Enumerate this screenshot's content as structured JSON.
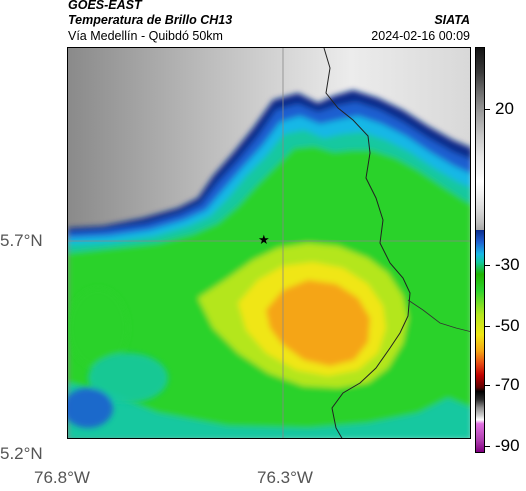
{
  "header": {
    "title_line1": "GOES-EAST",
    "title_line2": "Temperatura de Brillo CH13",
    "organization": "SIATA",
    "subtitle": "Vía Medellín - Quibdó 50km",
    "datetime": "2024-02-16 00:09"
  },
  "map": {
    "lat_ticks": [
      "5.7°N",
      "5.2°N"
    ],
    "lon_ticks": [
      "76.8°W",
      "76.3°W"
    ],
    "marker_icon": "star-icon",
    "colors": {
      "cold_gray": "#7a7a7a",
      "light": "#e8e8e8",
      "navy": "#0a2a8a",
      "blue": "#1f5fd0",
      "cyan": "#19b7e6",
      "teal": "#12c8a0",
      "green": "#2cd22c",
      "lime": "#b4e61e",
      "yellow": "#f0e614",
      "orange": "#f5a514"
    }
  },
  "colorbar": {
    "tick_labels": [
      "20",
      "-30",
      "-50",
      "-70",
      "-90"
    ]
  }
}
